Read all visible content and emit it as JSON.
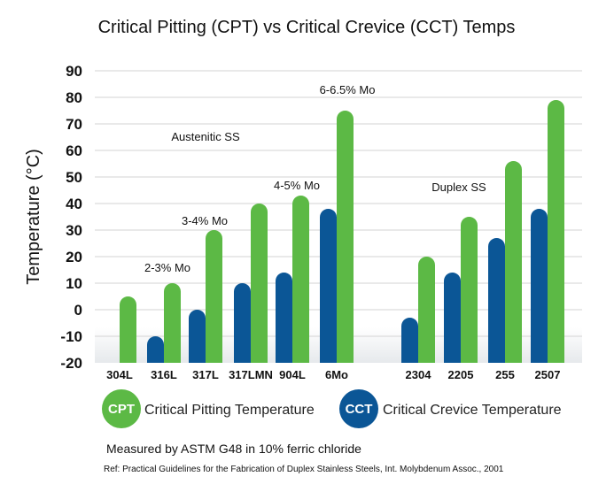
{
  "chart_data": {
    "type": "bar",
    "title": "Critical Pitting (CPT) vs Critical Crevice (CCT) Temps",
    "ylabel": "Temperature (°C)",
    "xlabel": "",
    "ylim": [
      -20,
      90
    ],
    "yticks": [
      90,
      80,
      70,
      60,
      50,
      40,
      30,
      20,
      10,
      0,
      -10,
      -20
    ],
    "grid": true,
    "categories": [
      "304L",
      "316L",
      "317L",
      "317LMN",
      "904L",
      "6Mo",
      "2304",
      "2205",
      "255",
      "2507"
    ],
    "series": [
      {
        "name": "Critical Crevice Temperature",
        "short": "CCT",
        "color": "#0b5696",
        "values": [
          null,
          -10,
          0,
          10,
          14,
          38,
          -3,
          14,
          27,
          38
        ]
      },
      {
        "name": "Critical Pitting Temperature",
        "short": "CPT",
        "color": "#5cb945",
        "values": [
          5,
          10,
          30,
          40,
          43,
          75,
          20,
          35,
          56,
          79
        ]
      }
    ],
    "annotations": [
      {
        "text": "2-3% Mo",
        "near": "316L"
      },
      {
        "text": "3-4% Mo",
        "near": "317L"
      },
      {
        "text": "4-5% Mo",
        "near": "904L"
      },
      {
        "text": "6-6.5% Mo",
        "near": "6Mo"
      },
      {
        "text": "Austenitic SS",
        "near": "317LMN"
      },
      {
        "text": "Duplex SS",
        "near": "2205"
      }
    ],
    "legend_placement": "bottom"
  },
  "notes": {
    "method": "Measured by ASTM G48 in 10% ferric chloride",
    "reference": "Ref: Practical Guidelines for the Fabrication of Duplex Stainless Steels, Int. Molybdenum Assoc., 2001"
  }
}
